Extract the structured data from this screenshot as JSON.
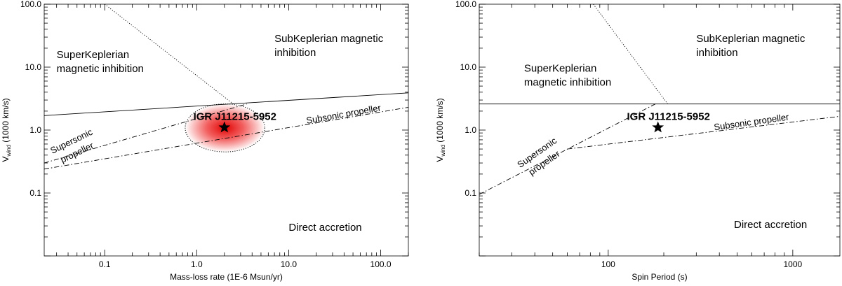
{
  "chart_data": [
    {
      "type": "line",
      "xlabel": "Mass-loss rate (1E-6 Msun/yr)",
      "ylabel_main": "V",
      "ylabel_sub": "wind",
      "ylabel_rest": " (1000 km/s)",
      "xscale": "log",
      "yscale": "log",
      "xlim": [
        0.022,
        200
      ],
      "ylim": [
        0.01,
        100
      ],
      "xticks": [
        {
          "value": 0.1,
          "label": "0.1"
        },
        {
          "value": 1,
          "label": "1.0"
        },
        {
          "value": 10,
          "label": "10.0"
        },
        {
          "value": 100,
          "label": "100.0"
        }
      ],
      "yticks": [
        {
          "value": 0.1,
          "label": "0.1"
        },
        {
          "value": 1,
          "label": "1.0"
        },
        {
          "value": 10,
          "label": "10.0"
        },
        {
          "value": 100,
          "label": "100.0"
        }
      ],
      "curves": [
        {
          "style": "dotted",
          "points": [
            [
              0.1,
              100
            ],
            [
              2.5,
              2.6
            ]
          ]
        },
        {
          "style": "solid",
          "points": [
            [
              0.022,
              1.7
            ],
            [
              200,
              3.9
            ]
          ]
        },
        {
          "style": "dashdot",
          "points": [
            [
              0.022,
              0.3
            ],
            [
              3.5,
              2.6
            ]
          ]
        },
        {
          "style": "dashdot",
          "points": [
            [
              0.022,
              0.24
            ],
            [
              200,
              2.3
            ]
          ]
        }
      ],
      "region_labels": [
        {
          "text_lines": [
            "SuperKeplerian",
            "magnetic inhibition"
          ],
          "at": [
            0.03,
            14
          ]
        },
        {
          "text_lines": [
            "SubKeplerian magnetic",
            "inhibition"
          ],
          "at": [
            7,
            25
          ]
        },
        {
          "text_lines": [
            "Direct accretion"
          ],
          "at": [
            10,
            0.025
          ]
        }
      ],
      "curve_labels": [
        {
          "text_lines": [
            "Supersonic",
            "propeller"
          ],
          "at": [
            0.045,
            0.6
          ],
          "angle": -26
        },
        {
          "text_lines": [
            "Subsonic propeller"
          ],
          "at": [
            40,
            1.6
          ],
          "angle": -10
        }
      ],
      "source": {
        "name": "IGR J11215-5952",
        "x": 2.0,
        "y": 1.1,
        "error_ellipse": {
          "x_range": [
            0.75,
            5.5
          ],
          "y_range": [
            0.45,
            2.6
          ]
        }
      },
      "grid": false
    },
    {
      "type": "line",
      "xlabel": "Spin Period (s)",
      "ylabel_main": "V",
      "ylabel_sub": "wind",
      "ylabel_rest": " (1000 km/s)",
      "xscale": "log",
      "yscale": "log",
      "xlim": [
        20,
        1800
      ],
      "ylim": [
        0.01,
        100
      ],
      "xticks": [
        {
          "value": 100,
          "label": "100"
        },
        {
          "value": 1000,
          "label": "1000"
        }
      ],
      "yticks": [
        {
          "value": 0.1,
          "label": "0.1"
        },
        {
          "value": 1,
          "label": "1.0"
        },
        {
          "value": 10,
          "label": "10.0"
        },
        {
          "value": 100,
          "label": "100.0"
        }
      ],
      "curves": [
        {
          "style": "dotted",
          "points": [
            [
              83,
              100
            ],
            [
              210,
              2.6
            ]
          ]
        },
        {
          "style": "solid",
          "points": [
            [
              20,
              2.6
            ],
            [
              1800,
              2.6
            ]
          ]
        },
        {
          "style": "dashdot",
          "points": [
            [
              20,
              0.095
            ],
            [
              180,
              2.6
            ]
          ]
        },
        {
          "style": "dashdot",
          "points": [
            [
              60,
              0.5
            ],
            [
              1800,
              1.65
            ]
          ]
        }
      ],
      "region_labels": [
        {
          "text_lines": [
            "SuperKeplerian",
            "magnetic inhibition"
          ],
          "at": [
            35,
            8.5
          ]
        },
        {
          "text_lines": [
            "SubKeplerian magnetic",
            "inhibition"
          ],
          "at": [
            300,
            25
          ]
        },
        {
          "text_lines": [
            "Direct accretion"
          ],
          "at": [
            480,
            0.028
          ]
        }
      ],
      "curve_labels": [
        {
          "text_lines": [
            "Supersonic",
            "propeller"
          ],
          "at": [
            42,
            0.4
          ],
          "angle": -35
        },
        {
          "text_lines": [
            "Subsonic propeller"
          ],
          "at": [
            600,
            1.2
          ],
          "angle": -8
        }
      ],
      "source": {
        "name": "IGR J11215-5952",
        "x": 186,
        "y": 1.1
      },
      "grid": false
    }
  ]
}
